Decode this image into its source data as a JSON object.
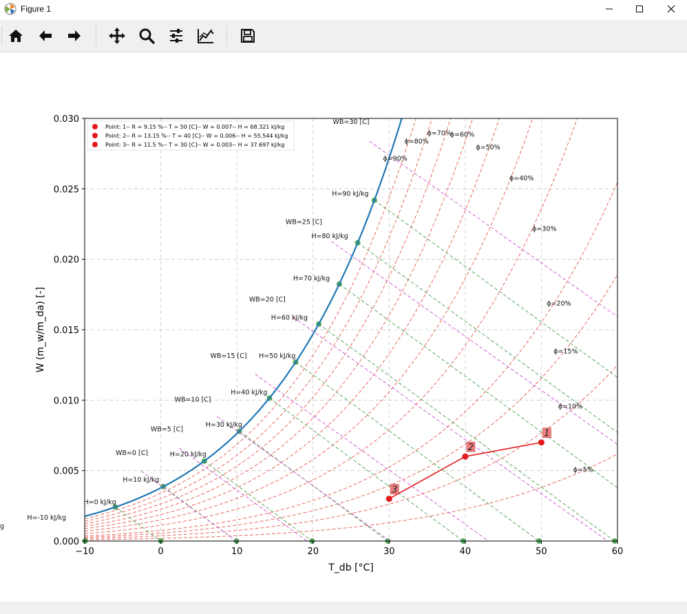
{
  "window": {
    "title": "Figure 1"
  },
  "toolbar": {
    "buttons": [
      {
        "name": "home",
        "icon": "home-icon"
      },
      {
        "name": "back",
        "icon": "arrow-left-icon"
      },
      {
        "name": "forward",
        "icon": "arrow-right-icon"
      },
      {
        "name": "pan",
        "icon": "move-icon"
      },
      {
        "name": "zoom",
        "icon": "magnifier-icon"
      },
      {
        "name": "subplots",
        "icon": "sliders-icon"
      },
      {
        "name": "customize",
        "icon": "chart-line-icon"
      },
      {
        "name": "save",
        "icon": "floppy-disk-icon"
      }
    ]
  },
  "chart_data": {
    "type": "line",
    "title": "",
    "xlabel": "T_db [°C]",
    "ylabel": "W (m_w/m_da) [-]",
    "xlim": [
      -10,
      60
    ],
    "ylim": [
      0,
      0.03
    ],
    "xticks": [
      "−10",
      "0",
      "10",
      "20",
      "30",
      "40",
      "50",
      "60"
    ],
    "yticks": [
      "0.000",
      "0.005",
      "0.010",
      "0.015",
      "0.020",
      "0.025",
      "0.030"
    ],
    "grid": true,
    "colors": {
      "saturation": "#1f77b4",
      "rh_lines": "#e8675c",
      "enthalpy_lines": "#5aa75a",
      "wetbulb_lines": "#d060d0",
      "process": "#e31a1c",
      "marker_green": "#3a9a44"
    },
    "legend": {
      "placement": "top-left",
      "entries": [
        "Point: 1-- R = 9.15 %-- T = 50 [C]-- W = 0.007-- H = 68.321 kJ/kg",
        "Point: 2-- R = 13.15 %-- T = 40 [C]-- W = 0.006-- H = 55.544 kJ/kg",
        "Point: 3-- R = 11.5 %-- T = 30 [C]-- W = 0.003-- H = 37.697 kJ/kg"
      ]
    },
    "process_points": [
      {
        "label": "1",
        "T": 50,
        "W": 0.007
      },
      {
        "label": "2",
        "T": 40,
        "W": 0.006
      },
      {
        "label": "3",
        "T": 30,
        "W": 0.003
      }
    ],
    "rh_curves": [
      0.05,
      0.1,
      0.15,
      0.2,
      0.3,
      0.4,
      0.5,
      0.6,
      0.7,
      0.8,
      0.9
    ],
    "rh_labels": [
      "ϕ=5%",
      "ϕ=10%",
      "ϕ=15%",
      "ϕ=20%",
      "ϕ=30%",
      "ϕ=40%",
      "ϕ=50%",
      "ϕ=60%",
      "ϕ=70%",
      "ϕ=80%",
      "ϕ=90%"
    ],
    "enthalpy_lines": [
      -10,
      0,
      10,
      20,
      30,
      40,
      50,
      60,
      70,
      80,
      90
    ],
    "enthalpy_labels": [
      "H=-10 kJ/kg",
      "H=0 kJ/kg",
      "H=10 kJ/kg",
      "H=20 kJ/kg",
      "H=30 kJ/kg",
      "H=40 kJ/kg",
      "H=50 kJ/kg",
      "H=60 kJ/kg",
      "H=70 kJ/kg",
      "H=80 kJ/kg",
      "H=90 kJ/kg"
    ],
    "wetbulb_lines": [
      0,
      5,
      10,
      15,
      20,
      25,
      30
    ],
    "wetbulb_labels": [
      "WB=0 [C]",
      "WB=5 [C]",
      "WB=10 [C]",
      "WB=15 [C]",
      "WB=20 [C]",
      "WB=25 [C]",
      "WB=30 [C]"
    ],
    "cut_label": "g"
  }
}
